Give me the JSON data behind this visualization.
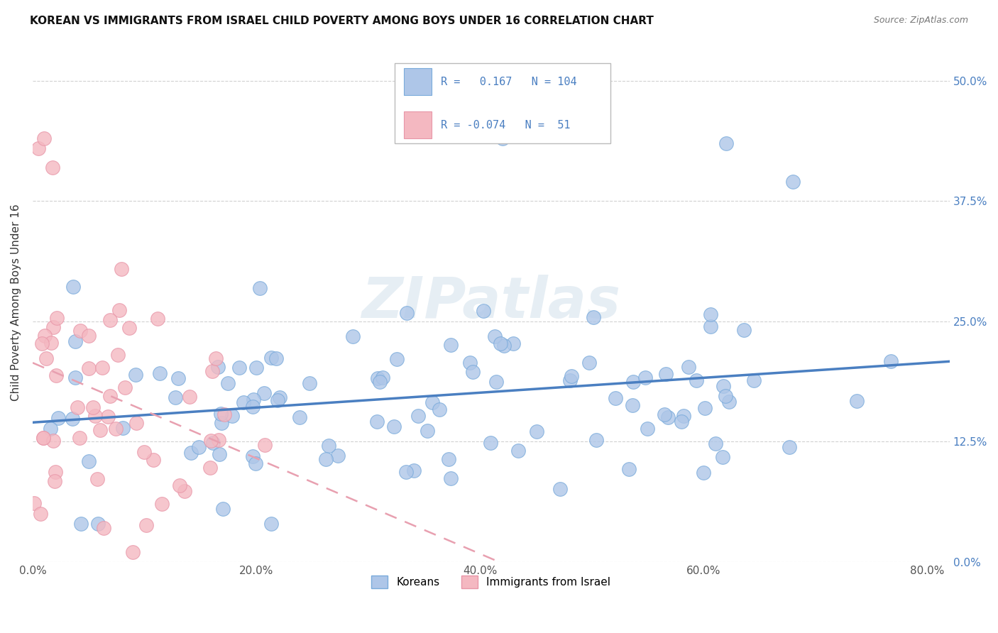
{
  "title": "KOREAN VS IMMIGRANTS FROM ISRAEL CHILD POVERTY AMONG BOYS UNDER 16 CORRELATION CHART",
  "source": "Source: ZipAtlas.com",
  "ylabel_label": "Child Poverty Among Boys Under 16",
  "stat_box": {
    "korean_R": "0.167",
    "korean_N": "104",
    "israel_R": "-0.074",
    "israel_N": "51"
  },
  "watermark": "ZIPatlas",
  "background_color": "#ffffff",
  "grid_color": "#cccccc",
  "korean_line_color": "#4a7fc1",
  "israel_line_color": "#e8a0b0",
  "korean_scatter_color": "#aec6e8",
  "israel_scatter_color": "#f4b8c1",
  "korean_scatter_edge": "#7aabdb",
  "israel_scatter_edge": "#e896a8",
  "tick_color": "#4a7fc1",
  "xlim": [
    0.0,
    0.82
  ],
  "ylim": [
    0.0,
    0.54
  ],
  "xticks": [
    0.0,
    0.2,
    0.4,
    0.6,
    0.8
  ],
  "yticks": [
    0.0,
    0.125,
    0.25,
    0.375,
    0.5
  ],
  "title_fontsize": 11,
  "axis_fontsize": 11,
  "tick_fontsize": 11
}
